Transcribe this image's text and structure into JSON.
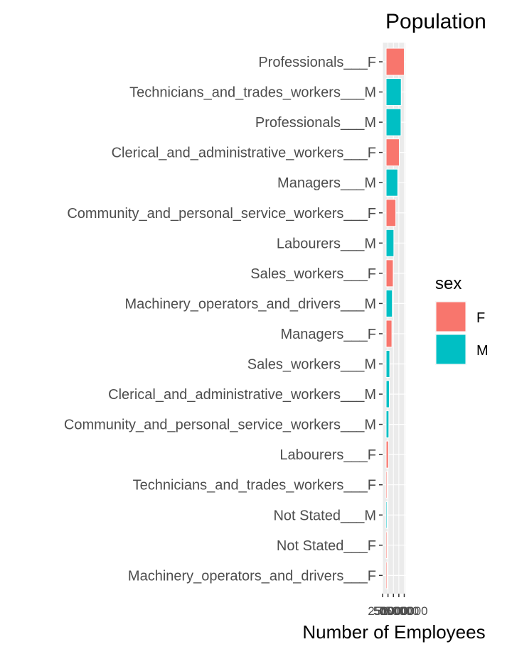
{
  "chart_data": {
    "type": "bar",
    "orientation": "horizontal",
    "title": "Population",
    "xlabel": "Number of Employees",
    "ylabel": "",
    "xlim": [
      0,
      1050000
    ],
    "x_ticks": [
      0,
      250000,
      500000,
      750000,
      1000000
    ],
    "x_tick_labels": [
      "0",
      "250000",
      "500000",
      "750000",
      "1000000"
    ],
    "grid": true,
    "legend": {
      "title": "sex",
      "placement": "right",
      "entries": [
        {
          "label": "F",
          "color": "#F8766D"
        },
        {
          "label": "M",
          "color": "#00BFC4"
        }
      ]
    },
    "bars": [
      {
        "category": "Professionals___F",
        "value": 1000000,
        "sex": "F"
      },
      {
        "category": "Technicians_and_trades_workers___M",
        "value": 860000,
        "sex": "M"
      },
      {
        "category": "Professionals___M",
        "value": 850000,
        "sex": "M"
      },
      {
        "category": "Clerical_and_administrative_workers___F",
        "value": 770000,
        "sex": "F"
      },
      {
        "category": "Managers___M",
        "value": 700000,
        "sex": "M"
      },
      {
        "category": "Community_and_personal_service_workers___F",
        "value": 610000,
        "sex": "F"
      },
      {
        "category": "Labourers___M",
        "value": 520000,
        "sex": "M"
      },
      {
        "category": "Sales_workers___F",
        "value": 490000,
        "sex": "F"
      },
      {
        "category": "Machinery_operators_and_drivers___M",
        "value": 450000,
        "sex": "M"
      },
      {
        "category": "Managers___F",
        "value": 430000,
        "sex": "F"
      },
      {
        "category": "Sales_workers___M",
        "value": 330000,
        "sex": "M"
      },
      {
        "category": "Clerical_and_administrative_workers___M",
        "value": 310000,
        "sex": "M"
      },
      {
        "category": "Community_and_personal_service_workers___M",
        "value": 290000,
        "sex": "M"
      },
      {
        "category": "Labourers___F",
        "value": 270000,
        "sex": "F"
      },
      {
        "category": "Technicians_and_trades_workers___F",
        "value": 190000,
        "sex": "F"
      },
      {
        "category": "Not Stated___M",
        "value": 95000,
        "sex": "M"
      },
      {
        "category": "Not Stated___F",
        "value": 80000,
        "sex": "F"
      },
      {
        "category": "Machinery_operators_and_drivers___F",
        "value": 60000,
        "sex": "F"
      }
    ]
  }
}
